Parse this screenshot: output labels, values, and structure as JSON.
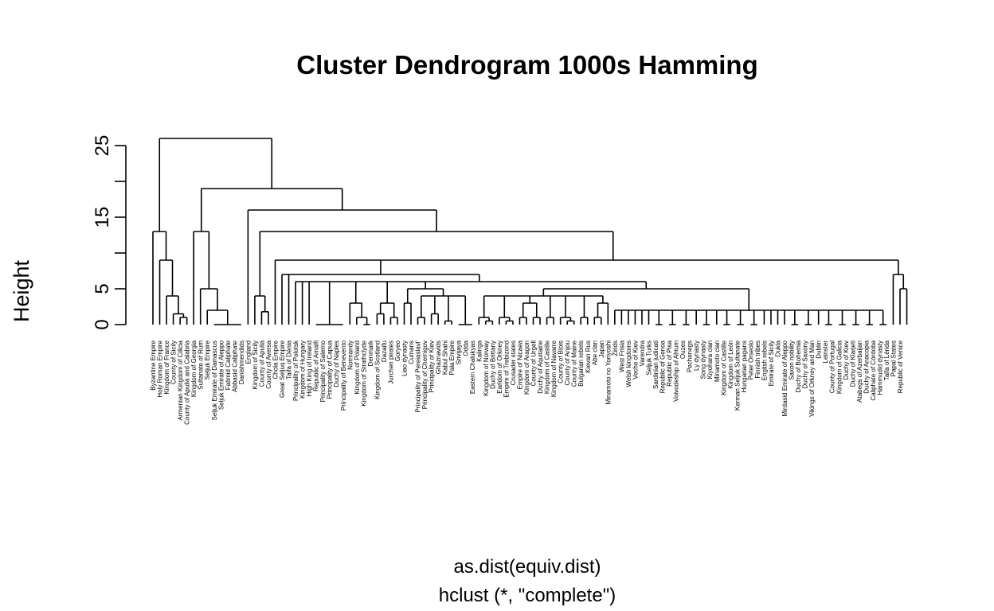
{
  "chart_data": {
    "type": "dendrogram",
    "title": "Cluster Dendrogram 1000s Hamming",
    "ylabel": "Height",
    "xlabel": "as.dist(equiv.dist)",
    "sublabel": "hclust (*, \"complete\")",
    "ylim": [
      0,
      26
    ],
    "ticks": [
      0,
      5,
      15,
      25
    ],
    "leaves": [
      "Byzantine Empire",
      "Holy Roman Empire",
      "Kingdom of France",
      "County of Sicily",
      "Armenian Kingdom of Cilicia",
      "County of Apulia and Calabria",
      "Kingdom of Georgia",
      "Sultanate of Rum",
      "Seljuk Empire",
      "Seljuk Emirate of Damascus",
      "Seljuk Emirate of Aleppo",
      "Fatimid Caliphate",
      "Abbasid Caliphate",
      "Danishmendids",
      "England",
      "Kingdom of Sicily",
      "County of Apulia",
      "County of Aversa",
      "Chola Empire",
      "Great Seljuq Empire",
      "Taifa of Dénia",
      "Principality of Polotsk",
      "Kingdom of Hungary",
      "High King of Ireland",
      "Republic of Amalfi",
      "Principality of Salerno",
      "Principality of Capua",
      "Duchy of Naples",
      "Principality of Benevento",
      "Normandy",
      "Kingdom of Poland",
      "Kingdom of Strathclyde",
      "Denmark",
      "Kingdom of Scotland",
      "Dazaifu",
      "Jurchen pirates",
      "Goryeo",
      "Liao dynasty",
      "Cumans",
      "Principality of Pereiaslavl'",
      "Principality of Chernigov",
      "Principality of Kiev",
      "Ghaznavids",
      "Kabul Shahi",
      "Pala Empire",
      "Srivijaya",
      "Odda",
      "Eastern Chalukyas",
      "Kalinga",
      "Kingdom of Norway",
      "Duchy of Brittany",
      "Earldom of Orkney",
      "Empire of Trebizond",
      "Crusader states",
      "Empire of Nicaea",
      "Kingdom of Aragon",
      "County of Urgell",
      "Duchy of Aquitaine",
      "Kingdom of Castile",
      "Kingdom of Navarre",
      "County of Blois",
      "County of Anjou",
      "County of Maine",
      "Bulgarian rebels",
      "Kievan Rus",
      "Abe clan",
      "Japan",
      "Minamoto no Yoriyoshi",
      "Zirids",
      "West Frisia",
      "Welsh kingdoms",
      "Veche of Kiev",
      "Varendra",
      "Seljuk Turks",
      "Sardinian judicati",
      "Republic of Genoa",
      "Republic of Pisa",
      "Voivodeship of Ahtum",
      "Ouzes",
      "Pechenegs",
      "Ly dynasty",
      "Song dynasty",
      "Kiyohara clan",
      "Minamoto clan",
      "Kingdom of Castille",
      "Kingdom of León",
      "Kerman Seljuk Sultanate",
      "Hungarian pagans",
      "Peter Orseolo",
      "Finnish tribes",
      "English rebels",
      "Emirate of Sicily",
      "Dukla",
      "Mirdasid Emirate of Aleppo",
      "Saxon nobility",
      "Duchy of Bohemia",
      "Duchy of Saxony",
      "Vikings of Orkney and Man",
      "Dublin",
      "Leinster",
      "County of Portugal",
      "Kingdom of Galicia",
      "Duchy of Kiev",
      "Duchy of Klarjeti",
      "Atabegs of Azerbaijan",
      "Duchy of Anacopia",
      "Caliphate of Córdoba",
      "Hammudid dynasty",
      "Taifa of Lérida",
      "Papal States",
      "Republic of Venice"
    ]
  }
}
